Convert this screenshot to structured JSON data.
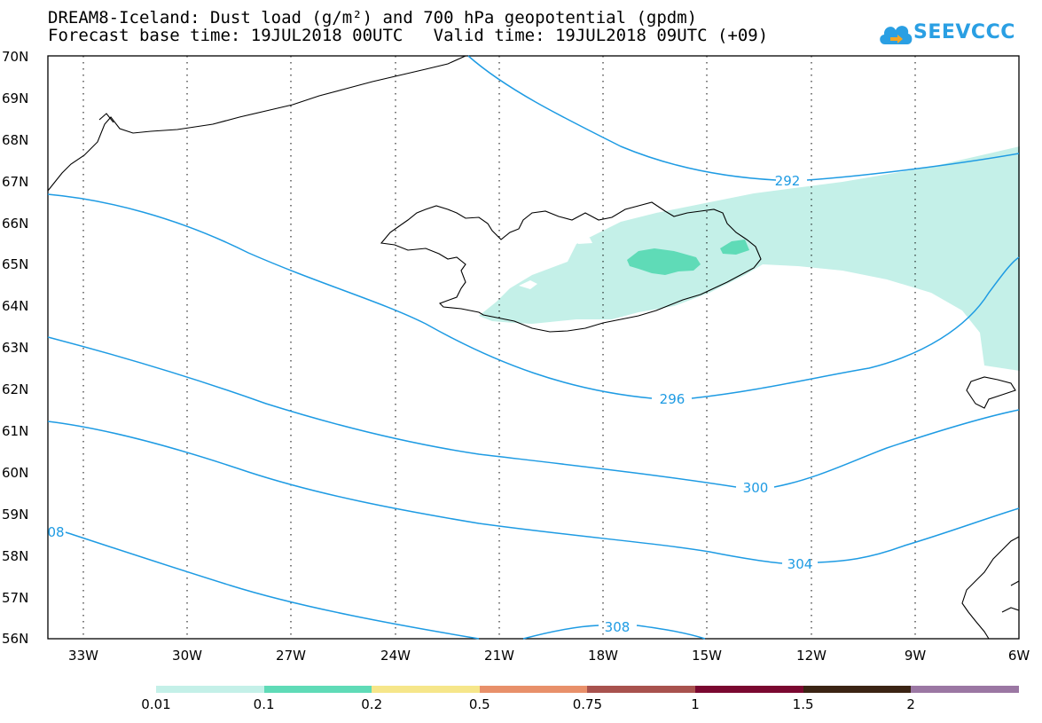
{
  "title_line1": "DREAM8-Iceland: Dust load (g/m²) and 700 hPa geopotential (gpdm)",
  "title_line2": "Forecast base time: 19JUL2018 00UTC   Valid time: 19JUL2018 09UTC (+09)",
  "logo_text": "SEEVCCC",
  "lat_labels": [
    "70N",
    "69N",
    "68N",
    "67N",
    "66N",
    "65N",
    "64N",
    "63N",
    "62N",
    "61N",
    "60N",
    "59N",
    "58N",
    "57N",
    "56N"
  ],
  "lon_labels": [
    "33W",
    "30W",
    "27W",
    "24W",
    "21W",
    "18W",
    "15W",
    "12W",
    "9W",
    "6W"
  ],
  "contour_labels": [
    "292",
    "296",
    "300",
    "304",
    "308",
    "08"
  ],
  "colorbar": {
    "labels": [
      "0.01",
      "0.1",
      "0.2",
      "0.5",
      "0.75",
      "1",
      "1.5",
      "2"
    ],
    "colors": [
      "#c4f0e8",
      "#5fdbb7",
      "#f6e68a",
      "#e8906a",
      "#a8524e",
      "#7a0830",
      "#3b2414",
      "#9b77a3"
    ]
  },
  "contour_color": "#1e9be3",
  "map_extent": {
    "lon_min": -34,
    "lon_max": -6,
    "lat_min": 56,
    "lat_max": 70
  }
}
